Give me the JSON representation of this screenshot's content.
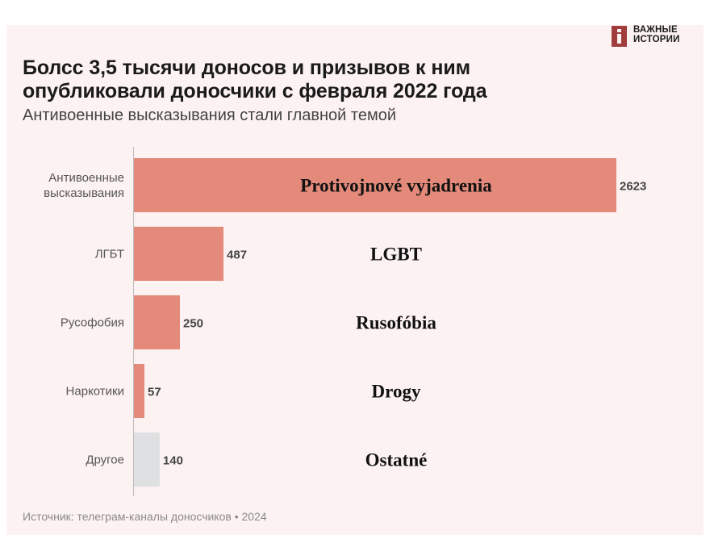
{
  "brand": {
    "logo_line1": "ВАЖНЫЕ",
    "logo_line2": "ИСТОРИИ"
  },
  "title_line1": "Болсс 3,5 тысячи доносов и призывов к ним",
  "title_line2": "опубликовали доносчики с февраля 2022 года",
  "subtitle": "Антивоенные высказывания стали главной темой",
  "source": "Источник: телеграм-каналы доносчиков • 2024",
  "colors": {
    "bar": "#e38a7a",
    "other": "#dfe0e2",
    "axis": "#bbbbbb",
    "background": "#fdf2f2"
  },
  "chart_data": {
    "type": "bar",
    "orientation": "horizontal",
    "categories": [
      [
        "Антивоенные",
        "высказывания"
      ],
      [
        "ЛГБТ"
      ],
      [
        "Русофобия"
      ],
      [
        "Наркотики"
      ],
      [
        "Другое"
      ]
    ],
    "values": [
      2623,
      487,
      250,
      57,
      140
    ],
    "bar_colors": [
      "#e38a7a",
      "#e38a7a",
      "#e38a7a",
      "#e38a7a",
      "#dfe0e2"
    ],
    "overlay_labels": [
      "Protivojnové vyjadrenia",
      "LGBT",
      "Rusofóbia",
      "Drogy",
      "Ostatné"
    ],
    "xlim": [
      0,
      2623
    ],
    "grid": false,
    "legend": "none"
  }
}
